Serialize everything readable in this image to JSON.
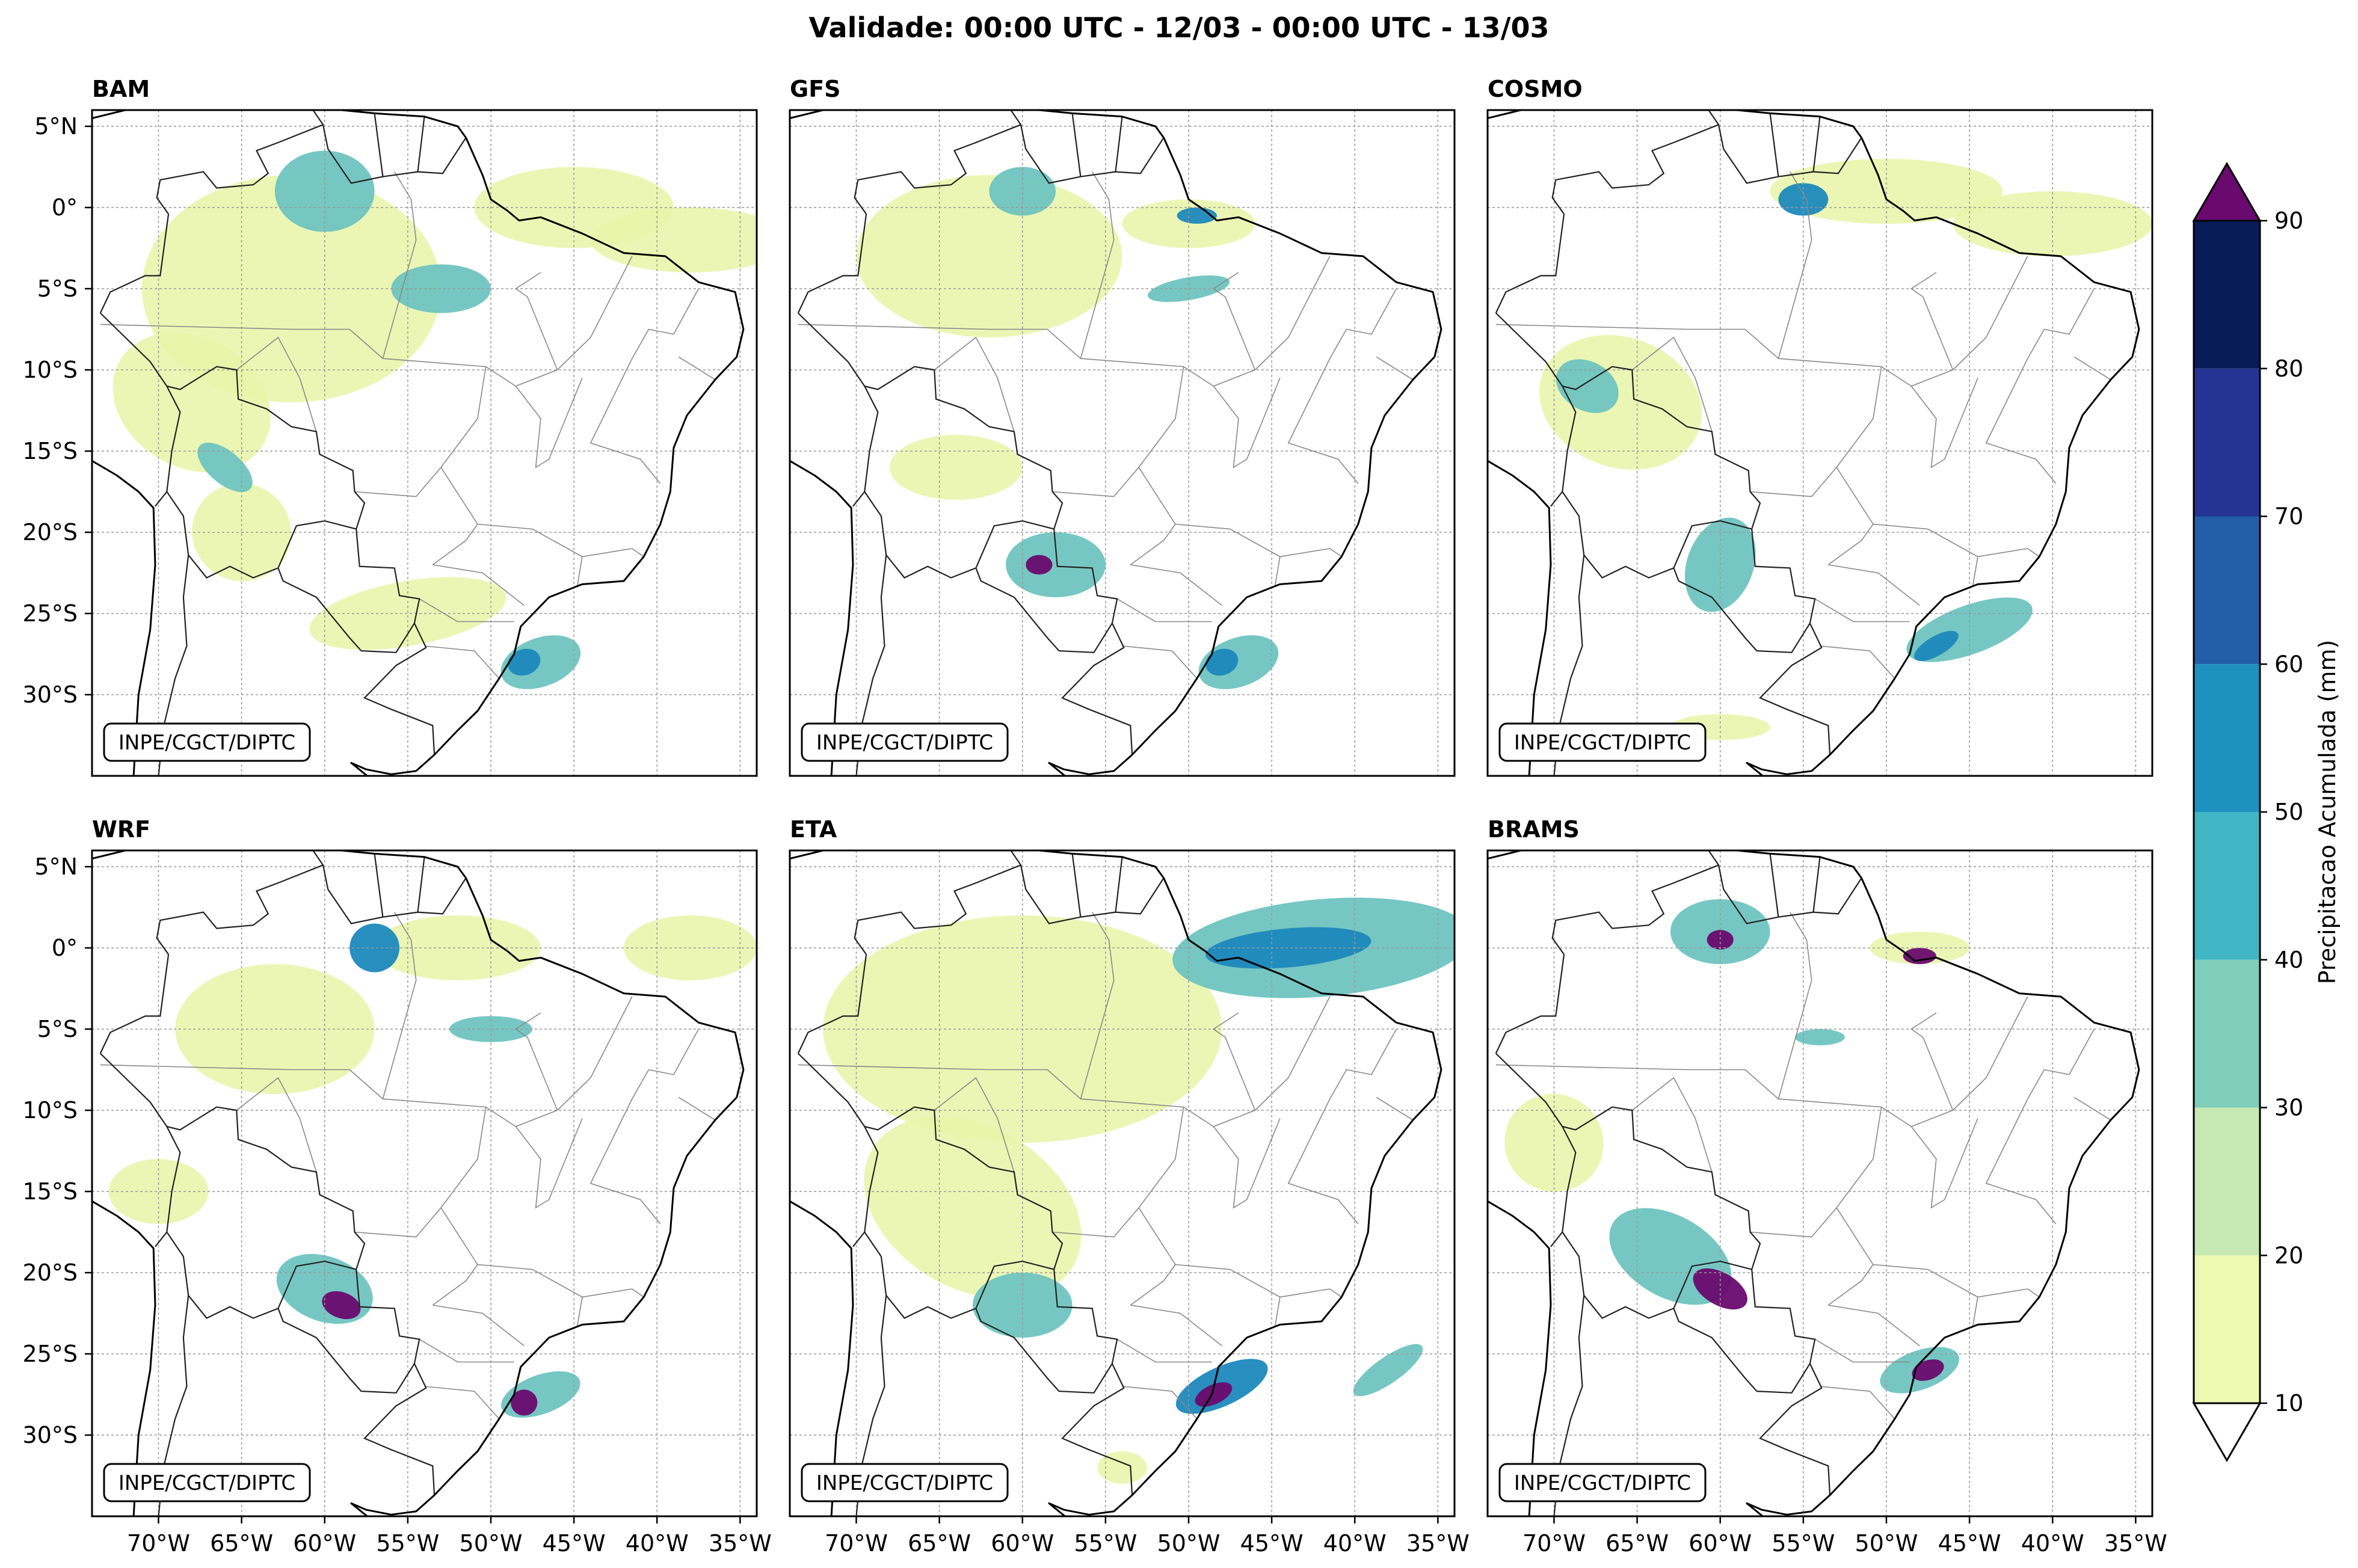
{
  "title": "Validade: 00:00 UTC - 12/03 - 00:00 UTC - 13/03",
  "credit": "INPE/CGCT/DIPTC",
  "panels": [
    {
      "name": "BAM"
    },
    {
      "name": "GFS"
    },
    {
      "name": "COSMO"
    },
    {
      "name": "WRF"
    },
    {
      "name": "ETA"
    },
    {
      "name": "BRAMS"
    }
  ],
  "lat_labels": [
    "5°N",
    "0°",
    "5°S",
    "10°S",
    "15°S",
    "20°S",
    "25°S",
    "30°S"
  ],
  "lon_labels": [
    "70°W",
    "65°W",
    "60°W",
    "55°W",
    "50°W",
    "45°W",
    "40°W",
    "35°W"
  ],
  "map_extent": {
    "lon_min": -74,
    "lon_max": -34,
    "lat_min": -35,
    "lat_max": 6
  },
  "colorbar": {
    "label": "Precipitacao Acumulada (mm)",
    "ticks": [
      "10",
      "20",
      "30",
      "40",
      "50",
      "60",
      "70",
      "80",
      "90"
    ],
    "levels": [
      10,
      20,
      30,
      40,
      50,
      60,
      70,
      80,
      90
    ],
    "colors": [
      "#edf8b1",
      "#c7e9b4",
      "#7fcdbb",
      "#41b6c4",
      "#1d91c0",
      "#225ea8",
      "#253494",
      "#081d58"
    ],
    "over_color": "#6a0a6e",
    "under_color": "#ffffff"
  },
  "precip_palette": {
    "light": "#e8f5a8",
    "mid": "#6fc4c0",
    "high": "#1e88bd",
    "extreme": "#6a0a6e"
  }
}
